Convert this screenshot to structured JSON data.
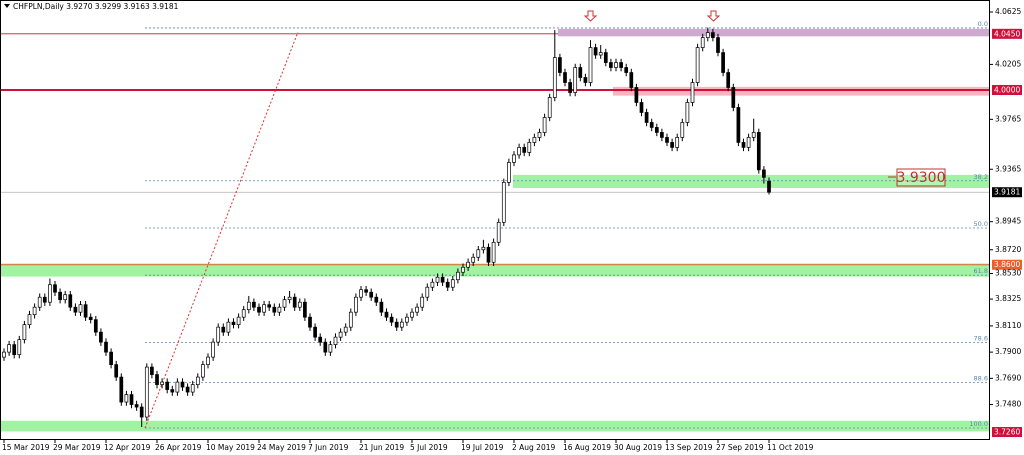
{
  "chart_data": {
    "type": "candlestick",
    "title": "CHFPLN,Daily  3.9270 3.9299 3.9163 3.9181",
    "ylim": [
      3.7196,
      4.0721
    ],
    "yticks": [
      4.0625,
      4.0205,
      3.9765,
      3.9365,
      3.8945,
      {
        "value": 3.872,
        "label": "3.8720"
      },
      {
        "value": 3.853,
        "label": "3.8530"
      },
      3.8325,
      {
        "value": 3.811,
        "label": "3.8110"
      },
      {
        "value": 3.79,
        "label": "3.7900"
      },
      {
        "value": 3.769,
        "label": "3.7690"
      },
      {
        "value": 3.748,
        "label": "3.7480"
      }
    ],
    "levels": [
      {
        "value": 4.045,
        "label": "4.0450",
        "color": "#d0103a"
      },
      {
        "value": 4,
        "label": "4.0000",
        "color": "#d0103a"
      },
      {
        "value": 3.86,
        "label": "3.8600",
        "color": "#e8602a"
      },
      {
        "value": 3.726,
        "label": "3.7260",
        "color": "#d0103a"
      }
    ],
    "zones": [
      {
        "from": 4.043,
        "to": 4.049,
        "color": "#c89ac8"
      },
      {
        "from": 3.9955,
        "to": 4.0025,
        "color": "#f4a8b4"
      },
      {
        "from": 3.9215,
        "to": 3.932,
        "color": "#90f090"
      },
      {
        "from": 3.8505,
        "to": 3.861,
        "color": "#90f090"
      },
      {
        "from": 3.7265,
        "to": 3.735,
        "color": "#90f090"
      }
    ],
    "fibonacci": {
      "high": 4.0497,
      "low": 3.7292,
      "color": "#5a86b4",
      "levels": [
        {
          "value": 0,
          "label": "0.0"
        },
        38.2,
        {
          "value": 50,
          "label": "50.0"
        },
        61.8,
        78.6,
        88.6,
        {
          "value": 100,
          "label": "100.0"
        }
      ]
    },
    "annotations": [
      "3.9300"
    ],
    "categories": [
      "15 Mar 2019",
      null,
      null,
      null,
      null,
      null,
      null,
      null,
      null,
      null,
      "29 Mar 2019",
      null,
      null,
      null,
      null,
      null,
      null,
      null,
      null,
      null,
      "12 Apr 2019",
      null,
      null,
      null,
      null,
      null,
      null,
      null,
      null,
      null,
      "26 Apr 2019",
      null,
      null,
      null,
      null,
      null,
      null,
      null,
      null,
      null,
      "10 May 2019",
      null,
      null,
      null,
      null,
      null,
      null,
      null,
      null,
      null,
      "24 May 2019",
      null,
      null,
      null,
      null,
      null,
      null,
      null,
      null,
      null,
      "7 Jun 2019",
      null,
      null,
      null,
      null,
      null,
      null,
      null,
      null,
      null,
      "21 Jun 2019",
      null,
      null,
      null,
      null,
      null,
      null,
      null,
      null,
      null,
      "5 Jul 2019",
      null,
      null,
      null,
      null,
      null,
      null,
      null,
      null,
      null,
      "19 Jul 2019",
      null,
      null,
      null,
      null,
      null,
      null,
      null,
      null,
      null,
      "2 Aug 2019",
      null,
      null,
      null,
      null,
      null,
      null,
      null,
      null,
      null,
      "16 Aug 2019",
      null,
      null,
      null,
      null,
      null,
      null,
      null,
      null,
      null,
      "30 Aug 2019",
      null,
      null,
      null,
      null,
      null,
      null,
      null,
      null,
      null,
      "13 Sep 2019",
      null,
      null,
      null,
      null,
      null,
      null,
      null,
      null,
      null,
      "27 Sep 2019",
      null,
      null,
      null,
      null,
      null,
      null,
      null,
      null,
      null,
      "11 Oct 2019"
    ],
    "candles": [
      [
        3.786,
        3.793,
        3.783,
        3.79
      ],
      [
        3.79,
        3.799,
        3.787,
        3.796
      ],
      [
        3.796,
        3.799,
        3.785,
        3.788
      ],
      [
        3.788,
        3.803,
        3.785,
        3.8
      ],
      [
        3.8,
        3.815,
        3.797,
        3.812
      ],
      [
        3.812,
        3.823,
        3.809,
        3.82
      ],
      [
        3.82,
        3.829,
        3.817,
        3.826
      ],
      [
        3.826,
        3.837,
        3.823,
        3.834
      ],
      [
        3.834,
        3.837,
        3.827,
        3.83
      ],
      [
        3.83,
        3.849,
        3.827,
        3.844
      ],
      [
        3.844,
        3.847,
        3.835,
        3.838
      ],
      [
        3.838,
        3.841,
        3.829,
        3.832
      ],
      [
        3.832,
        3.839,
        3.829,
        3.836
      ],
      [
        3.836,
        3.839,
        3.823,
        3.826
      ],
      [
        3.826,
        3.829,
        3.819,
        3.822
      ],
      [
        3.822,
        3.831,
        3.819,
        3.828
      ],
      [
        3.828,
        3.831,
        3.815,
        3.818
      ],
      [
        3.818,
        3.821,
        3.813,
        3.816
      ],
      [
        3.816,
        3.819,
        3.803,
        3.806
      ],
      [
        3.806,
        3.809,
        3.795,
        3.798
      ],
      [
        3.798,
        3.801,
        3.787,
        3.79
      ],
      [
        3.79,
        3.793,
        3.777,
        3.78
      ],
      [
        3.78,
        3.783,
        3.767,
        3.77
      ],
      [
        3.77,
        3.773,
        3.747,
        3.75
      ],
      [
        3.75,
        3.759,
        3.747,
        3.756
      ],
      [
        3.756,
        3.759,
        3.745,
        3.748
      ],
      [
        3.748,
        3.751,
        3.743,
        3.746
      ],
      [
        3.746,
        3.749,
        3.73,
        3.738
      ],
      [
        3.738,
        3.781,
        3.735,
        3.778
      ],
      [
        3.778,
        3.781,
        3.769,
        3.772
      ],
      [
        3.772,
        3.775,
        3.761,
        3.764
      ],
      [
        3.764,
        3.769,
        3.761,
        3.766
      ],
      [
        3.766,
        3.769,
        3.757,
        3.76
      ],
      [
        3.76,
        3.763,
        3.755,
        3.758
      ],
      [
        3.758,
        3.769,
        3.755,
        3.766
      ],
      [
        3.766,
        3.769,
        3.759,
        3.762
      ],
      [
        3.762,
        3.765,
        3.755,
        3.758
      ],
      [
        3.758,
        3.767,
        3.755,
        3.764
      ],
      [
        3.764,
        3.773,
        3.761,
        3.77
      ],
      [
        3.77,
        3.783,
        3.767,
        3.78
      ],
      [
        3.78,
        3.789,
        3.777,
        3.786
      ],
      [
        3.786,
        3.801,
        3.783,
        3.798
      ],
      [
        3.798,
        3.813,
        3.795,
        3.81
      ],
      [
        3.81,
        3.813,
        3.803,
        3.806
      ],
      [
        3.806,
        3.817,
        3.803,
        3.814
      ],
      [
        3.814,
        3.817,
        3.809,
        3.812
      ],
      [
        3.812,
        3.821,
        3.809,
        3.818
      ],
      [
        3.818,
        3.827,
        3.815,
        3.824
      ],
      [
        3.824,
        3.835,
        3.821,
        3.83
      ],
      [
        3.83,
        3.833,
        3.823,
        3.826
      ],
      [
        3.826,
        3.829,
        3.819,
        3.822
      ],
      [
        3.822,
        3.831,
        3.819,
        3.828
      ],
      [
        3.828,
        3.831,
        3.823,
        3.826
      ],
      [
        3.826,
        3.829,
        3.819,
        3.822
      ],
      [
        3.822,
        3.829,
        3.819,
        3.826
      ],
      [
        3.826,
        3.835,
        3.823,
        3.832
      ],
      [
        3.832,
        3.839,
        3.829,
        3.834
      ],
      [
        3.834,
        3.837,
        3.823,
        3.826
      ],
      [
        3.826,
        3.833,
        3.823,
        3.83
      ],
      [
        3.83,
        3.833,
        3.815,
        3.818
      ],
      [
        3.818,
        3.821,
        3.807,
        3.81
      ],
      [
        3.81,
        3.813,
        3.799,
        3.802
      ],
      [
        3.802,
        3.805,
        3.795,
        3.798
      ],
      [
        3.798,
        3.801,
        3.787,
        3.79
      ],
      [
        3.79,
        3.799,
        3.787,
        3.796
      ],
      [
        3.796,
        3.805,
        3.793,
        3.802
      ],
      [
        3.802,
        3.809,
        3.799,
        3.806
      ],
      [
        3.806,
        3.813,
        3.803,
        3.81
      ],
      [
        3.81,
        3.825,
        3.807,
        3.822
      ],
      [
        3.822,
        3.837,
        3.819,
        3.834
      ],
      [
        3.834,
        3.843,
        3.831,
        3.84
      ],
      [
        3.84,
        3.843,
        3.835,
        3.838
      ],
      [
        3.838,
        3.841,
        3.831,
        3.834
      ],
      [
        3.834,
        3.837,
        3.827,
        3.83
      ],
      [
        3.83,
        3.833,
        3.819,
        3.822
      ],
      [
        3.822,
        3.825,
        3.815,
        3.818
      ],
      [
        3.818,
        3.821,
        3.811,
        3.814
      ],
      [
        3.814,
        3.817,
        3.807,
        3.81
      ],
      [
        3.81,
        3.817,
        3.807,
        3.814
      ],
      [
        3.814,
        3.821,
        3.811,
        3.818
      ],
      [
        3.818,
        3.825,
        3.815,
        3.822
      ],
      [
        3.822,
        3.829,
        3.819,
        3.826
      ],
      [
        3.826,
        3.837,
        3.823,
        3.834
      ],
      [
        3.834,
        3.845,
        3.831,
        3.842
      ],
      [
        3.842,
        3.849,
        3.839,
        3.846
      ],
      [
        3.846,
        3.853,
        3.843,
        3.85
      ],
      [
        3.85,
        3.853,
        3.843,
        3.846
      ],
      [
        3.846,
        3.849,
        3.839,
        3.842
      ],
      [
        3.842,
        3.851,
        3.839,
        3.848
      ],
      [
        3.848,
        3.857,
        3.845,
        3.854
      ],
      [
        3.854,
        3.861,
        3.851,
        3.858
      ],
      [
        3.858,
        3.865,
        3.855,
        3.862
      ],
      [
        3.862,
        3.869,
        3.859,
        3.866
      ],
      [
        3.866,
        3.875,
        3.863,
        3.872
      ],
      [
        3.872,
        3.88,
        3.869,
        3.874
      ],
      [
        3.874,
        3.877,
        3.859,
        3.862
      ],
      [
        3.862,
        3.881,
        3.859,
        3.878
      ],
      [
        3.878,
        3.897,
        3.875,
        3.894
      ],
      [
        3.894,
        3.929,
        3.891,
        3.926
      ],
      [
        3.926,
        3.945,
        3.923,
        3.942
      ],
      [
        3.942,
        3.951,
        3.939,
        3.948
      ],
      [
        3.948,
        3.957,
        3.945,
        3.954
      ],
      [
        3.954,
        3.957,
        3.947,
        3.95
      ],
      [
        3.95,
        3.961,
        3.947,
        3.958
      ],
      [
        3.958,
        3.965,
        3.955,
        3.962
      ],
      [
        3.962,
        3.969,
        3.959,
        3.966
      ],
      [
        3.966,
        3.981,
        3.963,
        3.978
      ],
      [
        3.978,
        3.997,
        3.975,
        3.994
      ],
      [
        3.994,
        4.048,
        3.991,
        4.026
      ],
      [
        4.026,
        4.029,
        4.011,
        4.014
      ],
      [
        4.014,
        4.017,
        4.003,
        4.006
      ],
      [
        4.006,
        4.009,
        3.995,
        3.998
      ],
      [
        3.998,
        4.021,
        3.995,
        4.018
      ],
      [
        4.018,
        4.021,
        4.007,
        4.01
      ],
      [
        4.01,
        4.013,
        4.003,
        4.006
      ],
      [
        4.006,
        4.04,
        4.003,
        4.034
      ],
      [
        4.034,
        4.037,
        4.025,
        4.028
      ],
      [
        4.028,
        4.036,
        4.025,
        4.03
      ],
      [
        4.03,
        4.033,
        4.019,
        4.022
      ],
      [
        4.022,
        4.025,
        4.015,
        4.018
      ],
      [
        4.018,
        4.025,
        4.015,
        4.022
      ],
      [
        4.022,
        4.025,
        4.015,
        4.018
      ],
      [
        4.018,
        4.021,
        4.011,
        4.014
      ],
      [
        4.014,
        4.017,
        3.999,
        4.002
      ],
      [
        4.002,
        4.005,
        3.987,
        3.99
      ],
      [
        3.99,
        3.993,
        3.979,
        3.982
      ],
      [
        3.982,
        3.985,
        3.971,
        3.974
      ],
      [
        3.974,
        3.977,
        3.967,
        3.97
      ],
      [
        3.97,
        3.973,
        3.963,
        3.966
      ],
      [
        3.966,
        3.969,
        3.959,
        3.962
      ],
      [
        3.962,
        3.965,
        3.955,
        3.958
      ],
      [
        3.958,
        3.961,
        3.951,
        3.954
      ],
      [
        3.954,
        3.965,
        3.951,
        3.962
      ],
      [
        3.962,
        3.977,
        3.959,
        3.974
      ],
      [
        3.974,
        3.993,
        3.971,
        3.99
      ],
      [
        3.99,
        4.009,
        3.987,
        4.006
      ],
      [
        4.006,
        4.037,
        4.003,
        4.034
      ],
      [
        4.034,
        4.045,
        4.031,
        4.042
      ],
      [
        4.042,
        4.05,
        4.039,
        4.046
      ],
      [
        4.046,
        4.049,
        4.039,
        4.042
      ],
      [
        4.042,
        4.045,
        4.027,
        4.03
      ],
      [
        4.03,
        4.033,
        4.011,
        4.014
      ],
      [
        4.014,
        4.017,
        3.999,
        4.002
      ],
      [
        4.002,
        4.005,
        3.983,
        3.986
      ],
      [
        3.986,
        3.989,
        3.955,
        3.958
      ],
      [
        3.958,
        3.961,
        3.951,
        3.954
      ],
      [
        3.954,
        3.965,
        3.951,
        3.962
      ],
      [
        3.962,
        3.977,
        3.959,
        3.966
      ],
      [
        3.966,
        3.969,
        3.933,
        3.936
      ],
      [
        3.936,
        3.939,
        3.925,
        3.93
      ],
      [
        3.927,
        3.9299,
        3.9163,
        3.9181
      ]
    ]
  }
}
